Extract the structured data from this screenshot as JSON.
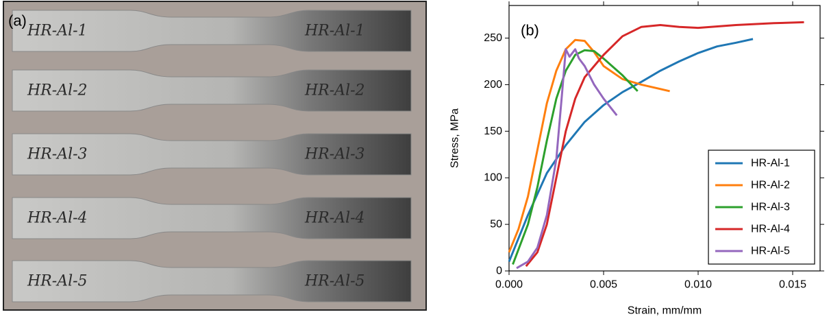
{
  "photo": {
    "label": "(a)",
    "specimen_labels": [
      "HR-Al-1",
      "HR-Al-2",
      "HR-Al-3",
      "HR-Al-4",
      "HR-Al-5"
    ]
  },
  "chart_data": {
    "type": "line",
    "panel_label": "(b)",
    "x_label": "Strain, mm/mm",
    "y_label": "Stress, MPa",
    "xlim": [
      0,
      0.01645
    ],
    "ylim": [
      0,
      285
    ],
    "xticks": [
      {
        "value": 0,
        "label": "0.000"
      },
      {
        "value": 0.005,
        "label": "0.005"
      },
      {
        "value": 0.01,
        "label": "0.010"
      },
      {
        "value": 0.015,
        "label": "0.015"
      }
    ],
    "yticks": [
      0,
      50,
      100,
      150,
      200,
      250
    ],
    "legend": "lower right",
    "series": [
      {
        "name": "HR-Al-1",
        "color": "#1f77b4",
        "x": [
          0,
          0.001,
          0.002,
          0.003,
          0.004,
          0.005,
          0.006,
          0.007,
          0.008,
          0.009,
          0.01,
          0.011,
          0.012,
          0.0129
        ],
        "values": [
          10,
          60,
          105,
          135,
          160,
          178,
          192,
          203,
          215,
          225,
          234,
          241,
          245,
          249
        ]
      },
      {
        "name": "HR-Al-2",
        "color": "#ff7f0e",
        "x": [
          0,
          0.0005,
          0.001,
          0.0015,
          0.002,
          0.0025,
          0.003,
          0.0035,
          0.004,
          0.0045,
          0.005,
          0.006,
          0.007,
          0.0085
        ],
        "values": [
          20,
          45,
          80,
          130,
          180,
          215,
          238,
          248,
          247,
          235,
          220,
          206,
          200,
          193
        ]
      },
      {
        "name": "HR-Al-3",
        "color": "#2ca02c",
        "x": [
          0.0002,
          0.001,
          0.0015,
          0.002,
          0.0025,
          0.003,
          0.0035,
          0.004,
          0.0045,
          0.005,
          0.006,
          0.0068
        ],
        "values": [
          7,
          50,
          90,
          140,
          185,
          215,
          232,
          237,
          236,
          228,
          210,
          193
        ]
      },
      {
        "name": "HR-Al-4",
        "color": "#d62728",
        "x": [
          0.0009,
          0.0015,
          0.002,
          0.0025,
          0.003,
          0.0035,
          0.004,
          0.005,
          0.006,
          0.007,
          0.008,
          0.009,
          0.01,
          0.012,
          0.014,
          0.0156
        ],
        "values": [
          5,
          20,
          50,
          100,
          150,
          185,
          208,
          232,
          252,
          262,
          264,
          262,
          261,
          264,
          266,
          267
        ]
      },
      {
        "name": "HR-Al-5",
        "color": "#9467bd",
        "x": [
          0.0004,
          0.001,
          0.0015,
          0.002,
          0.0025,
          0.0028,
          0.003,
          0.0032,
          0.0035,
          0.0037,
          0.004,
          0.0045,
          0.005,
          0.0057
        ],
        "values": [
          3,
          10,
          25,
          60,
          120,
          190,
          238,
          230,
          238,
          228,
          220,
          200,
          185,
          167
        ]
      }
    ]
  }
}
